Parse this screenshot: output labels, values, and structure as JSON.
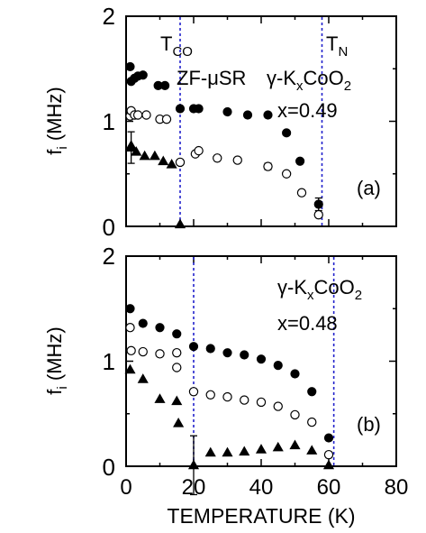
{
  "chart_data": [
    {
      "type": "scatter",
      "panel_label": "(a)",
      "ylabel_main": "f",
      "ylabel_sub": "i",
      "ylabel_unit": " (MHz)",
      "xlim": [
        0,
        80
      ],
      "ylim": [
        0,
        2
      ],
      "yticks": [
        "0",
        "1",
        "2"
      ],
      "grid": false,
      "annotations": {
        "tco_main": "T",
        "tco_sub": "CO",
        "tn_main": "T",
        "tn_sub": "N",
        "method": "ZF-μSR",
        "formula": [
          "γ-K",
          "x",
          "CoO",
          "2"
        ],
        "composition": "x=0.49"
      },
      "vlines": [
        {
          "name": "T_CO",
          "x": 16,
          "color": "#2222cc"
        },
        {
          "name": "T_N",
          "x": 58,
          "color": "#2222cc"
        }
      ],
      "series": [
        {
          "marker": "filled-circle",
          "points": [
            [
              1.2,
              1.52
            ],
            [
              1.5,
              1.38
            ],
            [
              2.5,
              1.41
            ],
            [
              3.5,
              1.43
            ],
            [
              5,
              1.44
            ],
            [
              9.5,
              1.34
            ],
            [
              11.5,
              1.34
            ],
            [
              16,
              1.12
            ],
            [
              20,
              1.12
            ],
            [
              21.5,
              1.12
            ],
            [
              30,
              1.09
            ],
            [
              36,
              1.06
            ],
            [
              42,
              1.06
            ],
            [
              47.5,
              0.89
            ],
            [
              51.5,
              0.62
            ],
            [
              57,
              0.21
            ]
          ],
          "errors": [
            [
              57,
              0.06
            ]
          ]
        },
        {
          "marker": "open-circle",
          "points": [
            [
              1.2,
              1.05
            ],
            [
              1.5,
              1.1
            ],
            [
              2.5,
              1.06
            ],
            [
              3.5,
              1.06
            ],
            [
              6,
              1.06
            ],
            [
              10,
              1.02
            ],
            [
              12,
              1.02
            ],
            [
              16,
              0.61
            ],
            [
              20.5,
              0.69
            ],
            [
              21.5,
              0.72
            ],
            [
              27,
              0.65
            ],
            [
              33,
              0.63
            ],
            [
              42,
              0.57
            ],
            [
              47.5,
              0.5
            ],
            [
              52,
              0.32
            ],
            [
              57,
              0.11
            ]
          ],
          "errors": [
            [
              42,
              0.03
            ]
          ]
        },
        {
          "marker": "filled-triangle",
          "points": [
            [
              1.5,
              0.75
            ],
            [
              1.5,
              0.77
            ],
            [
              3,
              0.71
            ],
            [
              5.5,
              0.67
            ],
            [
              8.5,
              0.67
            ],
            [
              11,
              0.62
            ],
            [
              13.5,
              0.59
            ],
            [
              16,
              0.02
            ]
          ],
          "errors": [
            [
              1.5,
              0.15
            ]
          ]
        }
      ]
    },
    {
      "type": "scatter",
      "panel_label": "(b)",
      "xlabel": "TEMPERATURE (K)",
      "ylabel_main": "f",
      "ylabel_sub": "i",
      "ylabel_unit": " (MHz)",
      "xlim": [
        0,
        80
      ],
      "ylim": [
        0,
        2
      ],
      "xticks": [
        "0",
        "20",
        "40",
        "60",
        "80"
      ],
      "yticks": [
        "0",
        "1",
        "2"
      ],
      "grid": false,
      "annotations": {
        "formula": [
          "γ-K",
          "x",
          "CoO",
          "2"
        ],
        "composition": "x=0.48"
      },
      "vlines": [
        {
          "name": "T_CO",
          "x": 20,
          "color": "#2222cc"
        },
        {
          "name": "T_N",
          "x": 61.5,
          "color": "#2222cc"
        }
      ],
      "series": [
        {
          "marker": "filled-circle",
          "points": [
            [
              1.2,
              1.5
            ],
            [
              5,
              1.36
            ],
            [
              10,
              1.32
            ],
            [
              15,
              1.26
            ],
            [
              20,
              1.14
            ],
            [
              25,
              1.12
            ],
            [
              30,
              1.08
            ],
            [
              35,
              1.06
            ],
            [
              40,
              1.02
            ],
            [
              45,
              0.96
            ],
            [
              50,
              0.88
            ],
            [
              55,
              0.71
            ],
            [
              60,
              0.27
            ]
          ],
          "errors": []
        },
        {
          "marker": "open-circle",
          "points": [
            [
              1.2,
              1.32
            ],
            [
              1.5,
              1.1
            ],
            [
              5,
              1.09
            ],
            [
              10,
              1.07
            ],
            [
              15,
              1.08
            ],
            [
              15,
              0.94
            ],
            [
              20,
              0.71
            ],
            [
              25,
              0.68
            ],
            [
              30,
              0.66
            ],
            [
              35,
              0.63
            ],
            [
              40,
              0.61
            ],
            [
              45,
              0.57
            ],
            [
              50,
              0.49
            ],
            [
              55,
              0.42
            ],
            [
              60,
              0.11
            ]
          ],
          "errors": []
        },
        {
          "marker": "filled-triangle",
          "points": [
            [
              1.2,
              0.92
            ],
            [
              5,
              0.83
            ],
            [
              10,
              0.64
            ],
            [
              15,
              0.62
            ],
            [
              15.5,
              0.41
            ],
            [
              20,
              0.01
            ],
            [
              25,
              0.13
            ],
            [
              30,
              0.13
            ],
            [
              35,
              0.14
            ],
            [
              40,
              0.16
            ],
            [
              45,
              0.18
            ],
            [
              50,
              0.2
            ],
            [
              55,
              0.15
            ],
            [
              60,
              0.01
            ]
          ],
          "errors": [
            [
              20,
              0.28
            ]
          ]
        }
      ]
    }
  ]
}
